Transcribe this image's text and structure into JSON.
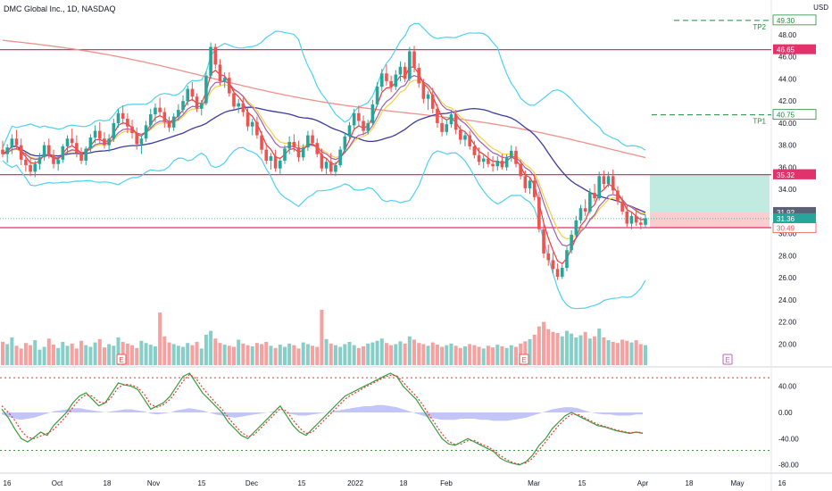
{
  "header": {
    "title": "DMC Global Inc., 1D, NASDAQ",
    "currency": "USD"
  },
  "colors": {
    "up": "#26a69a",
    "down": "#ef5350",
    "sma_slow": "#f0908a",
    "sma_mid": "#3a3ba0",
    "ema_fast": "#ef3b3b",
    "ema_alt": "#f5d040",
    "ema_slow": "#9c5fb5",
    "bands": "#4dd2f0",
    "hline": "#e0326b",
    "tp_line": "#1e8c3a",
    "stoch_k": "#3a9a3a",
    "stoch_d": "#e53935",
    "macd_hist": "#9b9ef0",
    "zone_profit": "#a7e2d4",
    "zone_loss": "#f7c2c2"
  },
  "price_axis": {
    "ticks": [
      "48.00",
      "46.00",
      "44.00",
      "42.00",
      "40.00",
      "38.00",
      "36.00",
      "34.00",
      "32.00",
      "30.00",
      "28.00",
      "26.00",
      "24.00",
      "22.00",
      "20.00"
    ]
  },
  "price_labels": [
    {
      "text": "49.30",
      "value": 49.3,
      "kind": "tp"
    },
    {
      "text": "46.65",
      "value": 46.65,
      "kind": "line"
    },
    {
      "text": "40.75",
      "value": 40.75,
      "kind": "tp"
    },
    {
      "text": "35.34",
      "value": 35.34,
      "kind": "line"
    },
    {
      "text": "35.32",
      "value": 35.32,
      "kind": "line"
    },
    {
      "text": "31.92",
      "value": 31.92,
      "kind": "entry"
    },
    {
      "text": "31.36",
      "value": 31.36,
      "kind": "last"
    },
    {
      "text": "05:31:13",
      "value": 30.55,
      "kind": "timer"
    },
    {
      "text": "30.54",
      "value": 30.54,
      "kind": "stop"
    },
    {
      "text": "30.49",
      "value": 30.49,
      "kind": "stop2"
    }
  ],
  "hlines": [
    46.65,
    35.34,
    30.54
  ],
  "targets": [
    {
      "label": "TP2",
      "value": 49.3
    },
    {
      "label": "TP1",
      "value": 40.75
    }
  ],
  "position": {
    "entry": 31.92,
    "target": 35.34,
    "stop": 30.54
  },
  "date_axis": [
    "16",
    "Oct",
    "18",
    "Nov",
    "15",
    "Dec",
    "15",
    "2022",
    "18",
    "Feb",
    "Mar",
    "15",
    "Apr",
    "18",
    "May",
    "16"
  ],
  "earnings_marker": "E",
  "osc_axis": {
    "ticks": [
      "40.00",
      "0.00",
      "-40.00",
      "-80.00"
    ]
  },
  "chart_data": {
    "type": "candlestick",
    "title": "DMC Global Inc., 1D, NASDAQ",
    "ylim": [
      18.5,
      50.5
    ],
    "ohlc": [
      [
        37.6,
        38.4,
        36.9,
        37.2
      ],
      [
        37.2,
        38.1,
        36.4,
        37.8
      ],
      [
        37.8,
        39.0,
        37.2,
        38.6
      ],
      [
        38.6,
        39.4,
        37.6,
        38.0
      ],
      [
        38.0,
        38.6,
        36.2,
        36.7
      ],
      [
        36.7,
        37.4,
        35.6,
        36.2
      ],
      [
        36.2,
        36.8,
        35.2,
        35.6
      ],
      [
        35.6,
        36.6,
        35.1,
        36.3
      ],
      [
        36.3,
        37.3,
        35.8,
        36.9
      ],
      [
        36.9,
        38.3,
        36.6,
        38.0
      ],
      [
        38.0,
        38.6,
        36.8,
        37.1
      ],
      [
        37.1,
        37.6,
        35.9,
        36.3
      ],
      [
        36.3,
        37.0,
        35.7,
        36.7
      ],
      [
        36.7,
        38.1,
        36.4,
        37.9
      ],
      [
        37.9,
        38.9,
        37.1,
        38.6
      ],
      [
        38.6,
        39.5,
        37.9,
        38.2
      ],
      [
        38.2,
        38.9,
        36.9,
        37.3
      ],
      [
        37.3,
        37.8,
        36.3,
        36.6
      ],
      [
        36.6,
        37.9,
        36.2,
        37.7
      ],
      [
        37.7,
        39.0,
        37.3,
        38.7
      ],
      [
        38.7,
        39.8,
        38.2,
        39.3
      ],
      [
        39.3,
        40.1,
        38.2,
        38.6
      ],
      [
        38.6,
        39.2,
        37.7,
        38.0
      ],
      [
        38.0,
        39.0,
        37.4,
        38.6
      ],
      [
        38.6,
        40.4,
        38.3,
        40.0
      ],
      [
        40.0,
        41.3,
        39.6,
        40.9
      ],
      [
        40.9,
        41.6,
        39.9,
        40.4
      ],
      [
        40.4,
        40.9,
        39.1,
        39.7
      ],
      [
        39.7,
        40.3,
        38.6,
        39.1
      ],
      [
        39.1,
        39.6,
        37.6,
        38.1
      ],
      [
        38.1,
        38.9,
        37.2,
        38.6
      ],
      [
        38.6,
        40.2,
        38.3,
        39.8
      ],
      [
        39.8,
        41.3,
        39.5,
        40.8
      ],
      [
        40.8,
        41.8,
        40.1,
        41.4
      ],
      [
        41.4,
        42.3,
        40.6,
        41.0
      ],
      [
        41.0,
        41.4,
        39.6,
        40.1
      ],
      [
        40.1,
        40.6,
        39.2,
        39.6
      ],
      [
        39.6,
        40.9,
        39.3,
        40.6
      ],
      [
        40.6,
        41.7,
        40.2,
        41.2
      ],
      [
        41.2,
        42.5,
        40.9,
        42.0
      ],
      [
        42.0,
        43.4,
        41.6,
        43.1
      ],
      [
        43.1,
        43.7,
        42.0,
        42.4
      ],
      [
        42.4,
        42.7,
        41.0,
        41.3
      ],
      [
        41.3,
        42.1,
        40.7,
        41.8
      ],
      [
        41.8,
        44.7,
        41.6,
        44.3
      ],
      [
        44.3,
        47.3,
        44.0,
        46.9
      ],
      [
        46.9,
        47.2,
        44.9,
        45.3
      ],
      [
        45.3,
        45.8,
        43.4,
        43.8
      ],
      [
        43.8,
        44.6,
        43.2,
        44.1
      ],
      [
        44.1,
        44.6,
        42.4,
        42.7
      ],
      [
        42.7,
        43.1,
        41.2,
        41.5
      ],
      [
        41.5,
        42.2,
        40.9,
        41.8
      ],
      [
        41.8,
        42.3,
        40.6,
        41.0
      ],
      [
        41.0,
        41.4,
        39.3,
        39.7
      ],
      [
        39.7,
        40.4,
        38.9,
        40.1
      ],
      [
        40.1,
        40.6,
        38.6,
        38.9
      ],
      [
        38.9,
        39.3,
        37.2,
        37.6
      ],
      [
        37.6,
        38.2,
        36.3,
        36.6
      ],
      [
        36.6,
        37.3,
        35.8,
        37.0
      ],
      [
        37.0,
        37.6,
        35.6,
        35.9
      ],
      [
        35.9,
        36.9,
        35.4,
        36.6
      ],
      [
        36.6,
        38.0,
        36.3,
        37.7
      ],
      [
        37.7,
        38.8,
        37.2,
        38.3
      ],
      [
        38.3,
        39.0,
        37.4,
        37.8
      ],
      [
        37.8,
        38.4,
        36.5,
        36.9
      ],
      [
        36.9,
        38.1,
        36.6,
        37.8
      ],
      [
        37.8,
        39.3,
        37.5,
        38.9
      ],
      [
        38.9,
        39.4,
        37.9,
        38.2
      ],
      [
        38.2,
        38.6,
        36.9,
        37.2
      ],
      [
        37.2,
        37.7,
        35.6,
        35.9
      ],
      [
        35.9,
        36.8,
        35.4,
        36.5
      ],
      [
        36.5,
        37.3,
        35.3,
        35.6
      ],
      [
        35.6,
        36.5,
        35.2,
        36.2
      ],
      [
        36.2,
        37.9,
        36.0,
        37.6
      ],
      [
        37.6,
        39.1,
        37.3,
        38.8
      ],
      [
        38.8,
        40.1,
        38.5,
        39.8
      ],
      [
        39.8,
        41.3,
        39.5,
        40.9
      ],
      [
        40.9,
        41.6,
        39.7,
        40.2
      ],
      [
        40.2,
        40.7,
        38.9,
        39.3
      ],
      [
        39.3,
        40.3,
        39.0,
        40.0
      ],
      [
        40.0,
        42.1,
        39.8,
        41.7
      ],
      [
        41.7,
        43.7,
        41.5,
        43.3
      ],
      [
        43.3,
        44.9,
        42.9,
        44.5
      ],
      [
        44.5,
        45.3,
        43.4,
        43.8
      ],
      [
        43.8,
        44.3,
        42.8,
        43.3
      ],
      [
        43.3,
        44.8,
        43.0,
        44.4
      ],
      [
        44.4,
        45.6,
        43.8,
        45.1
      ],
      [
        45.1,
        45.5,
        43.7,
        44.0
      ],
      [
        44.0,
        46.9,
        43.8,
        46.5
      ],
      [
        46.5,
        47.0,
        44.6,
        45.0
      ],
      [
        45.0,
        45.4,
        43.2,
        43.6
      ],
      [
        43.6,
        44.0,
        41.8,
        42.2
      ],
      [
        42.2,
        42.9,
        41.2,
        42.6
      ],
      [
        42.6,
        43.2,
        40.9,
        41.3
      ],
      [
        41.3,
        41.7,
        39.6,
        40.0
      ],
      [
        40.0,
        40.6,
        38.8,
        39.2
      ],
      [
        39.2,
        40.3,
        38.9,
        39.9
      ],
      [
        39.9,
        41.2,
        39.6,
        40.8
      ],
      [
        40.8,
        41.2,
        39.0,
        39.4
      ],
      [
        39.4,
        39.8,
        38.1,
        38.5
      ],
      [
        38.5,
        39.2,
        37.9,
        38.9
      ],
      [
        38.9,
        39.3,
        37.6,
        37.9
      ],
      [
        37.9,
        38.4,
        36.8,
        37.1
      ],
      [
        37.1,
        37.8,
        36.2,
        36.5
      ],
      [
        36.5,
        37.1,
        35.9,
        36.8
      ],
      [
        36.8,
        37.4,
        36.0,
        36.3
      ],
      [
        36.3,
        37.0,
        35.6,
        36.1
      ],
      [
        36.1,
        37.0,
        35.7,
        36.6
      ],
      [
        36.6,
        37.2,
        35.8,
        36.0
      ],
      [
        36.0,
        37.2,
        35.7,
        36.9
      ],
      [
        36.9,
        38.0,
        36.5,
        37.5
      ],
      [
        37.5,
        37.9,
        36.0,
        36.3
      ],
      [
        36.3,
        36.7,
        34.9,
        35.2
      ],
      [
        35.2,
        35.7,
        33.7,
        34.1
      ],
      [
        34.1,
        35.1,
        33.6,
        34.8
      ],
      [
        34.8,
        35.3,
        33.0,
        33.3
      ],
      [
        33.3,
        33.8,
        30.1,
        30.4
      ],
      [
        30.4,
        30.9,
        27.8,
        28.2
      ],
      [
        28.2,
        29.0,
        27.1,
        27.6
      ],
      [
        27.6,
        28.3,
        26.4,
        26.8
      ],
      [
        26.8,
        27.3,
        25.8,
        26.1
      ],
      [
        26.1,
        27.2,
        25.9,
        26.9
      ],
      [
        26.9,
        28.8,
        26.6,
        28.5
      ],
      [
        28.5,
        30.3,
        28.2,
        29.9
      ],
      [
        29.9,
        31.6,
        29.6,
        31.2
      ],
      [
        31.2,
        32.6,
        30.9,
        32.3
      ],
      [
        32.3,
        33.1,
        31.6,
        32.0
      ],
      [
        32.0,
        34.1,
        31.8,
        33.7
      ],
      [
        33.7,
        34.5,
        32.9,
        33.2
      ],
      [
        33.2,
        35.6,
        33.0,
        35.2
      ],
      [
        35.2,
        35.7,
        34.1,
        34.5
      ],
      [
        34.5,
        35.6,
        34.2,
        35.2
      ],
      [
        35.2,
        35.8,
        33.6,
        33.9
      ],
      [
        33.9,
        34.3,
        32.6,
        32.9
      ],
      [
        32.9,
        33.4,
        31.7,
        32.0
      ],
      [
        32.0,
        32.6,
        30.6,
        30.9
      ],
      [
        30.9,
        31.9,
        30.4,
        31.6
      ],
      [
        31.6,
        32.3,
        30.7,
        31.0
      ],
      [
        31.0,
        31.5,
        30.4,
        30.8
      ],
      [
        30.8,
        31.7,
        30.5,
        31.4
      ]
    ],
    "volume": [
      0.42,
      0.38,
      0.5,
      0.35,
      0.3,
      0.4,
      0.36,
      0.45,
      0.28,
      0.33,
      0.48,
      0.37,
      0.31,
      0.42,
      0.35,
      0.39,
      0.3,
      0.44,
      0.36,
      0.33,
      0.41,
      0.47,
      0.32,
      0.38,
      0.35,
      0.5,
      0.42,
      0.39,
      0.36,
      0.31,
      0.44,
      0.4,
      0.37,
      0.34,
      0.95,
      0.52,
      0.41,
      0.38,
      0.35,
      0.33,
      0.4,
      0.36,
      0.42,
      0.3,
      0.55,
      0.62,
      0.48,
      0.4,
      0.37,
      0.35,
      0.33,
      0.46,
      0.39,
      0.36,
      0.34,
      0.4,
      0.38,
      0.42,
      0.35,
      0.31,
      0.37,
      0.33,
      0.39,
      0.36,
      0.3,
      0.41,
      0.38,
      0.35,
      0.33,
      1.0,
      0.47,
      0.39,
      0.36,
      0.33,
      0.38,
      0.42,
      0.36,
      0.31,
      0.34,
      0.39,
      0.41,
      0.44,
      0.48,
      0.4,
      0.36,
      0.38,
      0.43,
      0.39,
      0.52,
      0.46,
      0.4,
      0.38,
      0.35,
      0.41,
      0.37,
      0.33,
      0.36,
      0.39,
      0.35,
      0.31,
      0.34,
      0.38,
      0.36,
      0.33,
      0.3,
      0.35,
      0.32,
      0.37,
      0.34,
      0.31,
      0.36,
      0.33,
      0.39,
      0.43,
      0.47,
      0.55,
      0.7,
      0.78,
      0.65,
      0.6,
      0.58,
      0.52,
      0.62,
      0.57,
      0.5,
      0.54,
      0.6,
      0.48,
      0.52,
      0.66,
      0.5,
      0.45,
      0.42,
      0.4,
      0.46,
      0.44,
      0.41,
      0.45,
      0.38,
      0.36
    ],
    "stoch_k": [
      5,
      -8,
      -25,
      -40,
      -45,
      -38,
      -30,
      -35,
      -20,
      -10,
      0,
      15,
      25,
      30,
      20,
      10,
      15,
      30,
      45,
      42,
      40,
      35,
      20,
      5,
      10,
      15,
      25,
      40,
      55,
      60,
      45,
      30,
      20,
      10,
      0,
      -15,
      -25,
      -35,
      -40,
      -30,
      -20,
      -10,
      0,
      10,
      -5,
      -20,
      -30,
      -35,
      -25,
      -15,
      -5,
      5,
      15,
      25,
      30,
      35,
      40,
      45,
      50,
      55,
      60,
      55,
      40,
      30,
      20,
      5,
      -10,
      -25,
      -40,
      -48,
      -50,
      -45,
      -40,
      -45,
      -50,
      -55,
      -60,
      -70,
      -75,
      -78,
      -80,
      -75,
      -65,
      -50,
      -40,
      -25,
      -15,
      -5,
      0,
      -5,
      -10,
      -15,
      -20,
      -22,
      -25,
      -28,
      -30,
      -32,
      -30,
      -32
    ],
    "stoch_d": [
      10,
      0,
      -12,
      -28,
      -38,
      -40,
      -36,
      -32,
      -26,
      -16,
      -5,
      8,
      20,
      27,
      25,
      16,
      14,
      24,
      38,
      43,
      42,
      38,
      28,
      12,
      8,
      12,
      20,
      33,
      48,
      58,
      52,
      38,
      26,
      15,
      5,
      -8,
      -20,
      -30,
      -37,
      -34,
      -24,
      -14,
      -4,
      6,
      2,
      -12,
      -24,
      -32,
      -30,
      -20,
      -10,
      0,
      10,
      20,
      27,
      32,
      38,
      43,
      48,
      53,
      57,
      56,
      46,
      35,
      25,
      12,
      -4,
      -18,
      -33,
      -44,
      -49,
      -48,
      -43,
      -43,
      -48,
      -52,
      -58,
      -66,
      -72,
      -77,
      -79,
      -77,
      -70,
      -57,
      -45,
      -32,
      -20,
      -10,
      -3,
      -3,
      -8,
      -13,
      -18,
      -21,
      -24,
      -27,
      -29,
      -31,
      -30,
      -31
    ],
    "macd_hist": [
      -2,
      -4,
      -6,
      -7,
      -6,
      -5,
      -3,
      -1,
      1,
      2,
      3,
      4,
      4,
      3,
      2,
      1,
      0,
      1,
      2,
      3,
      3,
      2,
      1,
      -1,
      -2,
      -1,
      0,
      2,
      3,
      4,
      3,
      2,
      0,
      -2,
      -3,
      -4,
      -5,
      -4,
      -3,
      -2,
      -1,
      0,
      1,
      0,
      -1,
      -2,
      -3,
      -3,
      -2,
      -1,
      0,
      1,
      2,
      3,
      4,
      5,
      6,
      6,
      7,
      7,
      6,
      5,
      3,
      1,
      -1,
      -3,
      -5,
      -6,
      -7,
      -7,
      -7,
      -6,
      -6,
      -6,
      -7,
      -7,
      -8,
      -8,
      -8,
      -7,
      -6,
      -5,
      -3,
      -1,
      1,
      3,
      4,
      5,
      5,
      4,
      2,
      0,
      -1,
      -2,
      -2,
      -3,
      -3,
      -3,
      -2,
      -2
    ]
  }
}
